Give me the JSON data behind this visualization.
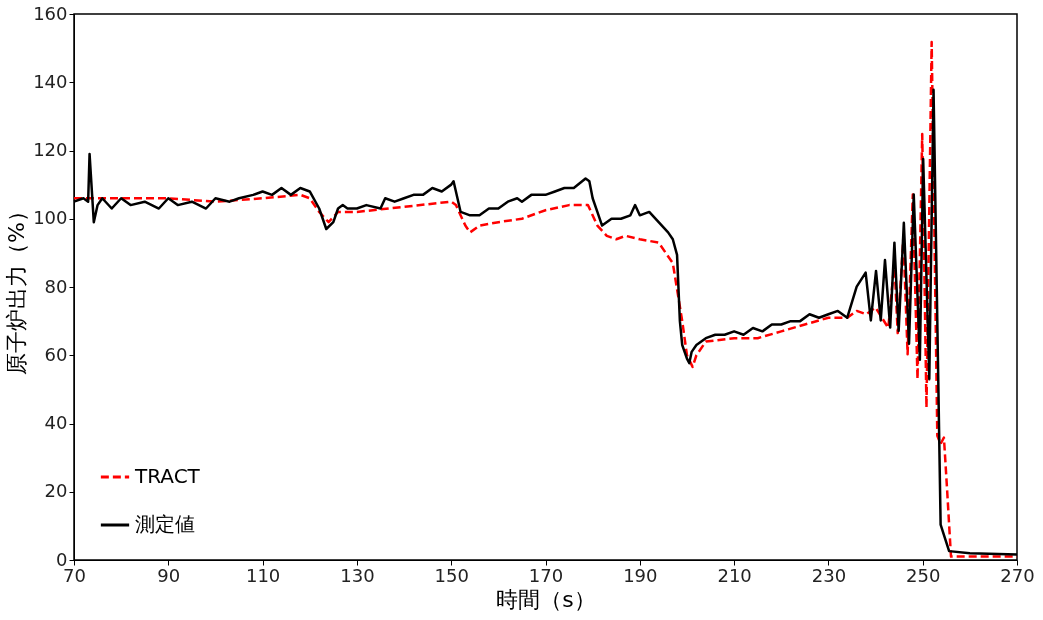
{
  "chart_data": {
    "type": "line",
    "xlabel": "時間（s）",
    "ylabel": "原子炉出力（%）",
    "xlim": [
      70,
      270
    ],
    "xticks": [
      70,
      90,
      110,
      130,
      150,
      170,
      190,
      210,
      230,
      250,
      270
    ],
    "ylim": [
      0,
      160
    ],
    "yticks": [
      0,
      20,
      40,
      60,
      80,
      100,
      120,
      140,
      160
    ],
    "grid": false,
    "legend": "bottom left",
    "series": [
      {
        "name": "TRACT",
        "color": "#ff0000",
        "line_style": "dashed",
        "x": [
          70,
          80,
          90,
          100,
          110,
          118,
          120,
          122,
          124,
          126,
          130,
          140,
          150,
          151,
          153,
          154,
          156,
          160,
          165,
          170,
          175,
          179,
          181,
          183,
          185,
          187,
          190,
          194,
          197,
          199,
          200,
          201.2,
          202,
          204,
          210,
          215,
          220,
          225,
          230,
          234,
          236,
          238,
          240,
          242.7,
          244,
          244.7,
          245.9,
          246.8,
          247.9,
          248.9,
          249.9,
          250.8,
          251.9,
          253.1,
          253.8,
          254.5,
          255.2,
          256,
          260,
          270
        ],
        "values": [
          106,
          106,
          106,
          105,
          106,
          107,
          106,
          102,
          99,
          102,
          102,
          103.5,
          105,
          104,
          98,
          96,
          98,
          99,
          100,
          102.5,
          104,
          104,
          98,
          95,
          94,
          95,
          94,
          93,
          87,
          70,
          60,
          56.6,
          60,
          64,
          65,
          65,
          67,
          69,
          71,
          71,
          73,
          72,
          74,
          68,
          87.3,
          66.5,
          94.6,
          60.3,
          107.1,
          53,
          124.8,
          44.7,
          151.8,
          36.4,
          34,
          35.9,
          20,
          1,
          1,
          1
        ]
      },
      {
        "name": "測定値",
        "color": "#000000",
        "line_style": "solid",
        "x": [
          70,
          72,
          73,
          73.3,
          74.2,
          75,
          76,
          78,
          80,
          82,
          85,
          88,
          90,
          92,
          95,
          98,
          100,
          103,
          105,
          108,
          110,
          112,
          114,
          116,
          118,
          120,
          122,
          123.5,
          125,
          126,
          127,
          128,
          130,
          132,
          135,
          136,
          138,
          140,
          142,
          144,
          146,
          148,
          150,
          150.5,
          152,
          154,
          156,
          158,
          160,
          162,
          164,
          165,
          167,
          170,
          172,
          174,
          176,
          178.5,
          179.3,
          180,
          181,
          182,
          184,
          186,
          188,
          189,
          190,
          192,
          194,
          196,
          197,
          197.9,
          198.5,
          199,
          200,
          200.5,
          201,
          202,
          204,
          206,
          208,
          210,
          212,
          214,
          216,
          218,
          220,
          222,
          224,
          226,
          228,
          230,
          232,
          234,
          236,
          237.9,
          239,
          240.1,
          241.1,
          242,
          243.1,
          244,
          244.9,
          246,
          247.1,
          248.1,
          249.4,
          250.1,
          251.4,
          252.3,
          253.8,
          255.6,
          260,
          270
        ],
        "values": [
          105,
          106,
          105,
          119,
          99,
          104,
          106,
          103,
          106,
          104,
          105,
          103,
          106,
          104,
          105,
          103,
          106,
          105,
          106,
          107,
          108,
          107,
          109,
          107,
          109,
          108,
          103,
          97,
          99,
          103,
          104,
          103,
          103,
          104,
          103,
          106,
          105,
          106,
          107,
          107,
          109,
          108,
          110,
          111,
          102,
          101,
          101,
          103,
          103,
          105,
          106,
          105,
          107,
          107,
          108,
          109,
          109,
          111.8,
          111,
          106,
          102,
          98,
          100,
          100,
          101,
          104,
          101,
          102,
          99,
          96,
          94,
          89.4,
          70,
          63,
          59,
          57.7,
          61,
          63,
          65,
          66,
          66,
          67,
          66,
          68,
          67,
          69,
          69,
          70,
          70,
          72,
          71,
          72,
          73,
          71,
          80.1,
          84.2,
          70.2,
          84.7,
          70.2,
          87.9,
          68.1,
          93,
          67.1,
          98.8,
          63.4,
          107.1,
          58.7,
          117.5,
          53,
          137.8,
          10.4,
          2.6,
          2,
          1.6
        ]
      }
    ]
  }
}
